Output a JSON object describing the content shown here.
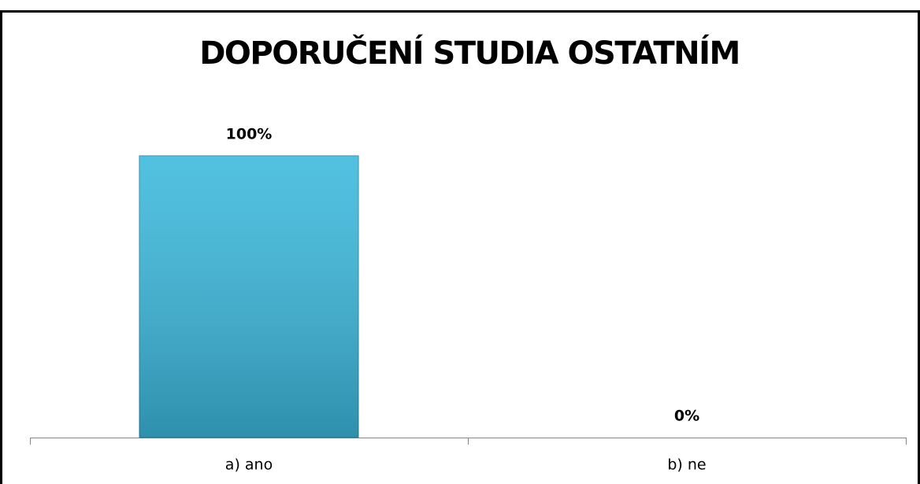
{
  "chart_data": {
    "type": "bar",
    "title": "DOPORUČENÍ STUDIA OSTATNÍM",
    "categories": [
      "a) ano",
      "b) ne"
    ],
    "values": [
      100,
      0
    ],
    "value_labels": [
      "100%",
      "0%"
    ],
    "color": "#3bb8dc",
    "ylim": [
      0,
      100
    ]
  }
}
